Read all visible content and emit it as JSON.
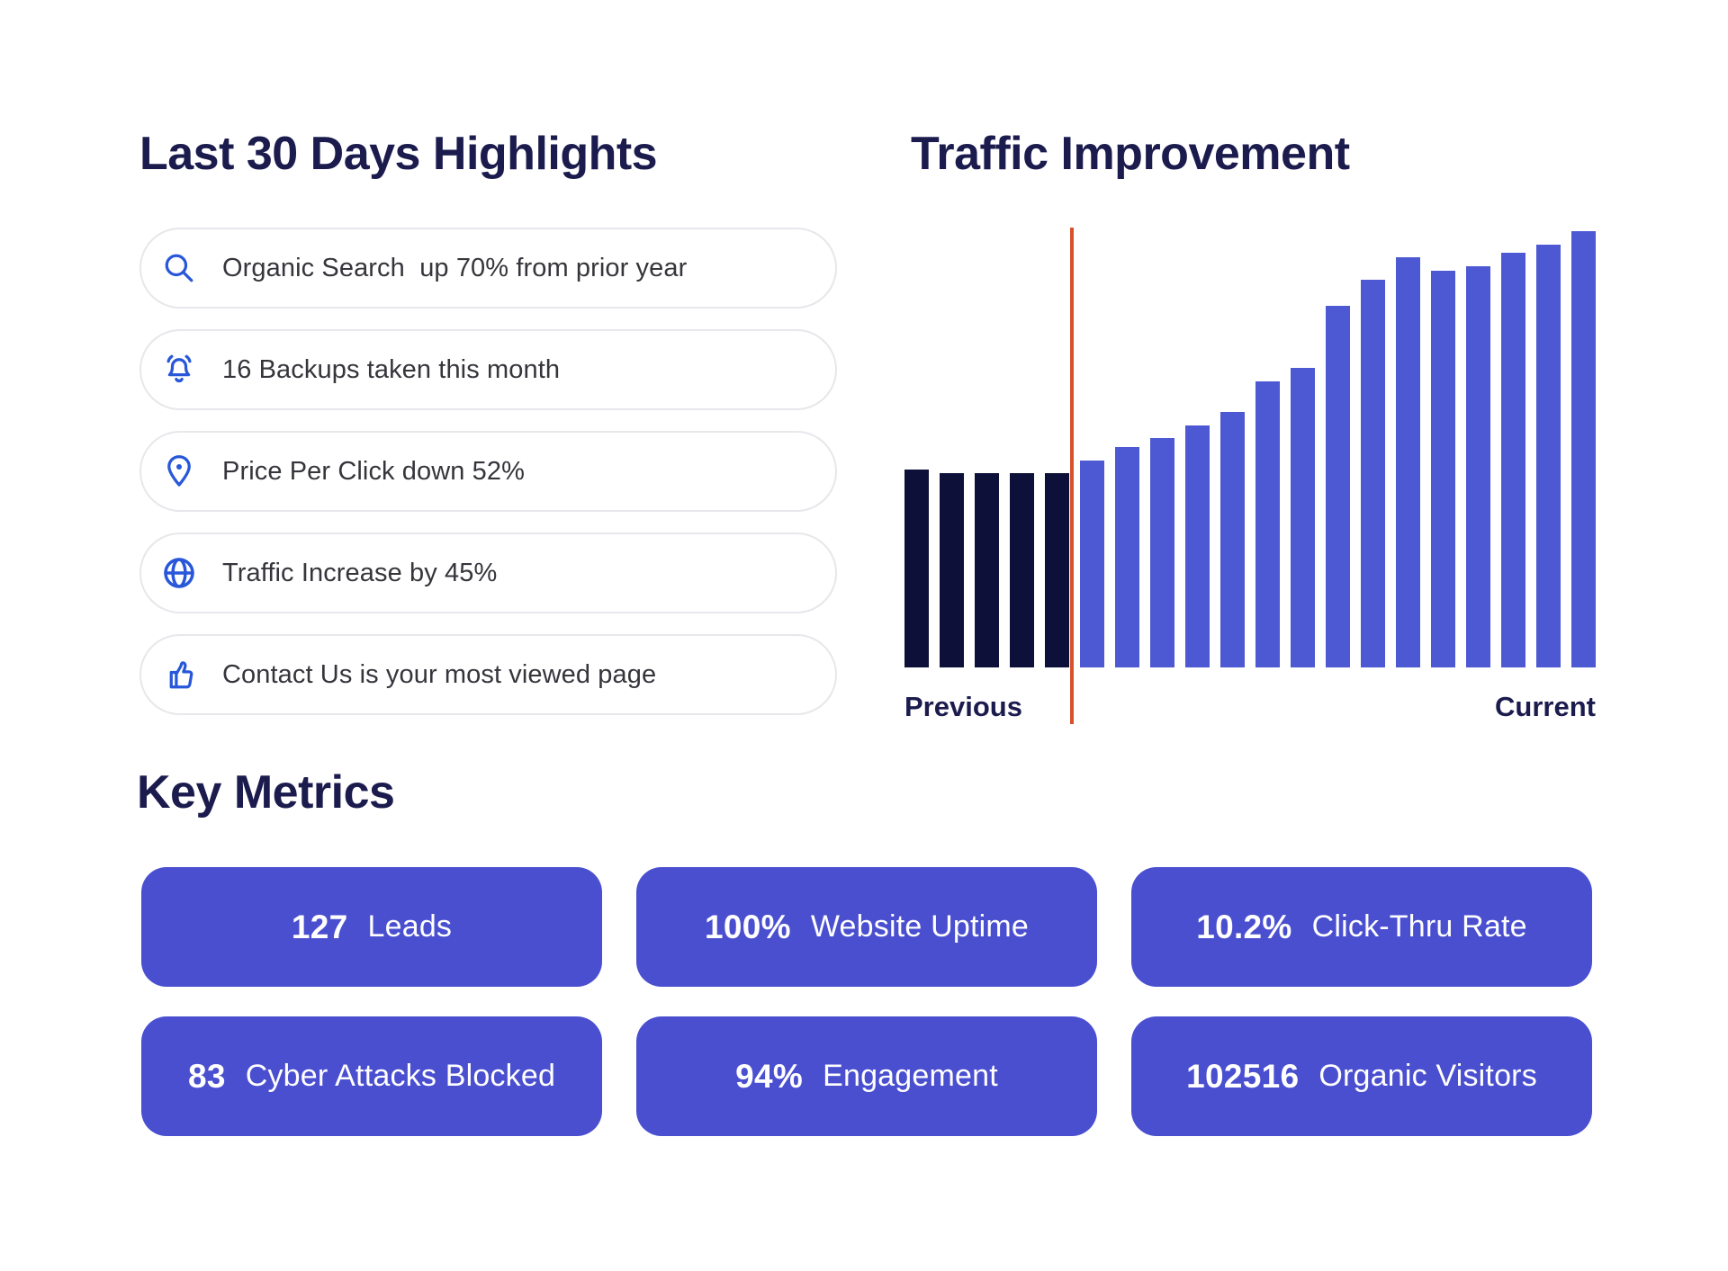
{
  "highlights": {
    "title": "Last 30 Days Highlights",
    "items": [
      {
        "icon": "search-icon",
        "text": "Organic Search  up 70% from prior year"
      },
      {
        "icon": "bell-icon",
        "text": "16 Backups taken this month"
      },
      {
        "icon": "location-pin-icon",
        "text": "Price Per Click down 52%"
      },
      {
        "icon": "globe-icon",
        "text": "Traffic Increase by 45%"
      },
      {
        "icon": "thumbs-up-icon",
        "text": "Contact Us is your most viewed page"
      }
    ]
  },
  "traffic": {
    "title": "Traffic Improvement",
    "left_label": "Previous",
    "right_label": "Current"
  },
  "chart_data": {
    "type": "bar",
    "title": "Traffic Improvement",
    "xlabel": "",
    "ylabel": "",
    "axis_labels": [
      "Previous",
      "Current"
    ],
    "grid": false,
    "legend_position": "none",
    "value_unit": "percent of tallest bar (no numeric axis shown)",
    "ylim": [
      0,
      100
    ],
    "divider": {
      "color": "#d8512d",
      "position": "between Previous and Current groups"
    },
    "series": [
      {
        "name": "Previous",
        "color": "#0d1038",
        "values": [
          45,
          44,
          44,
          44,
          44
        ]
      },
      {
        "name": "Current",
        "color": "#4d58d3",
        "values": [
          47,
          50,
          52,
          55,
          58,
          65,
          68,
          82,
          88,
          93,
          90,
          91,
          94,
          96,
          99
        ]
      }
    ]
  },
  "metrics": {
    "title": "Key Metrics",
    "tile_color": "#4a4fd0",
    "items": [
      {
        "value": "127",
        "label": "Leads"
      },
      {
        "value": "100%",
        "label": "Website Uptime"
      },
      {
        "value": "10.2%",
        "label": "Click-Thru Rate"
      },
      {
        "value": "83",
        "label": "Cyber Attacks Blocked"
      },
      {
        "value": "94%",
        "label": "Engagement"
      },
      {
        "value": "102516",
        "label": "Organic Visitors"
      }
    ]
  },
  "colors": {
    "heading": "#1b1b4e",
    "pill_border": "#e7e7ec",
    "pill_text": "#35353b",
    "icon_blue": "#2857d9",
    "bar_previous": "#0d1038",
    "bar_current": "#4d58d3",
    "divider_orange": "#d8512d",
    "tile_purple": "#4a4fd0",
    "background": "#ffffff"
  }
}
